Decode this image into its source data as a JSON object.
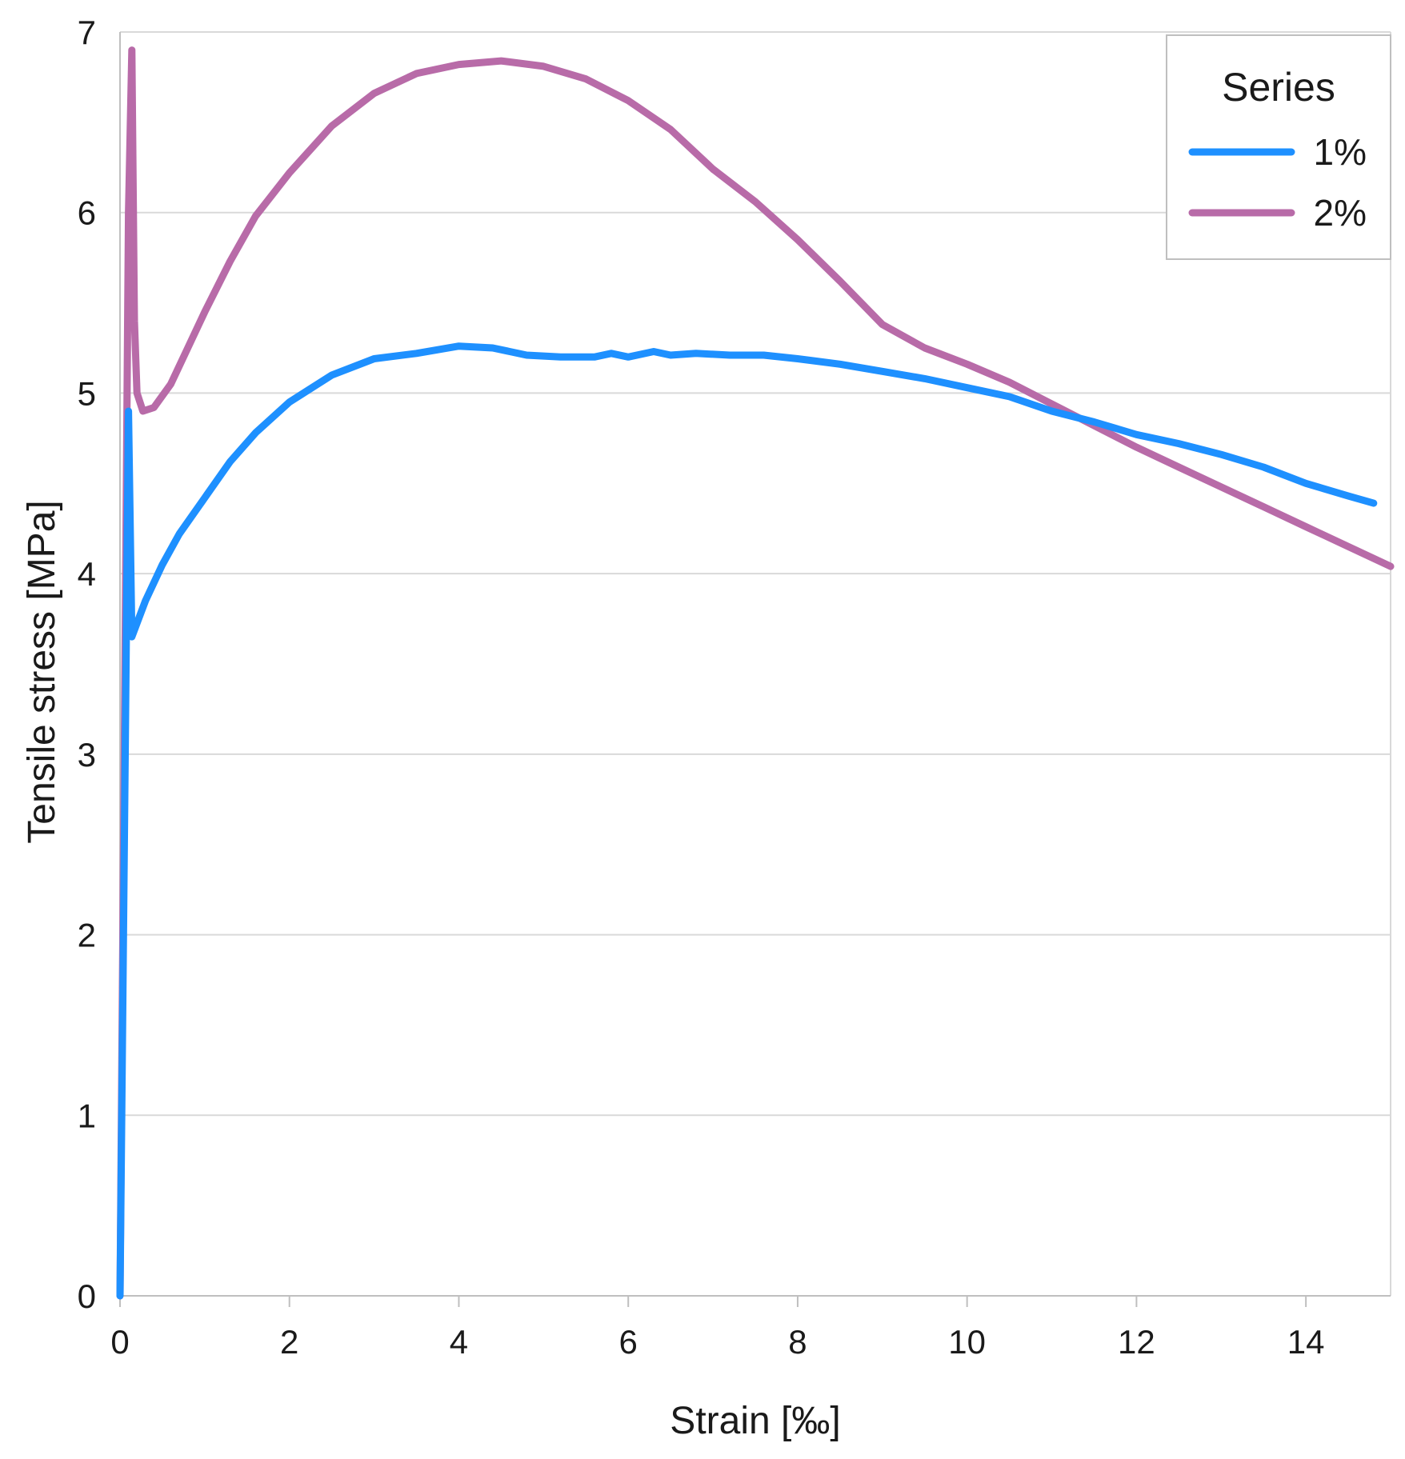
{
  "chart_data": {
    "type": "line",
    "xlabel": "Strain [‰]",
    "ylabel": "Tensile stress [MPa]",
    "xlim": [
      0,
      15
    ],
    "ylim": [
      0,
      7
    ],
    "x_ticks": [
      0,
      2,
      4,
      6,
      8,
      10,
      12,
      14
    ],
    "y_ticks": [
      0,
      1,
      2,
      3,
      4,
      5,
      6,
      7
    ],
    "grid": "horizontal",
    "legend": {
      "title": "Series",
      "placement": "top-right"
    },
    "series": [
      {
        "name": "1%",
        "color": "#1e90ff",
        "points": [
          [
            0,
            0
          ],
          [
            0.1,
            4.9
          ],
          [
            0.14,
            3.65
          ],
          [
            0.3,
            3.85
          ],
          [
            0.5,
            4.05
          ],
          [
            0.7,
            4.22
          ],
          [
            1.0,
            4.42
          ],
          [
            1.3,
            4.62
          ],
          [
            1.6,
            4.78
          ],
          [
            2.0,
            4.95
          ],
          [
            2.5,
            5.1
          ],
          [
            3.0,
            5.19
          ],
          [
            3.5,
            5.22
          ],
          [
            4.0,
            5.26
          ],
          [
            4.4,
            5.25
          ],
          [
            4.8,
            5.21
          ],
          [
            5.2,
            5.2
          ],
          [
            5.6,
            5.2
          ],
          [
            5.8,
            5.22
          ],
          [
            6.0,
            5.2
          ],
          [
            6.3,
            5.23
          ],
          [
            6.5,
            5.21
          ],
          [
            6.8,
            5.22
          ],
          [
            7.2,
            5.21
          ],
          [
            7.6,
            5.21
          ],
          [
            8.0,
            5.19
          ],
          [
            8.5,
            5.16
          ],
          [
            9.0,
            5.12
          ],
          [
            9.5,
            5.08
          ],
          [
            10.0,
            5.03
          ],
          [
            10.5,
            4.98
          ],
          [
            11.0,
            4.9
          ],
          [
            11.5,
            4.84
          ],
          [
            12.0,
            4.77
          ],
          [
            12.5,
            4.72
          ],
          [
            13.0,
            4.66
          ],
          [
            13.5,
            4.59
          ],
          [
            14.0,
            4.5
          ],
          [
            14.5,
            4.43
          ],
          [
            14.8,
            4.39
          ]
        ]
      },
      {
        "name": "2%",
        "color": "#b86ba8",
        "points": [
          [
            0,
            0
          ],
          [
            0.05,
            3.0
          ],
          [
            0.1,
            6.0
          ],
          [
            0.14,
            6.9
          ],
          [
            0.17,
            5.4
          ],
          [
            0.2,
            5.0
          ],
          [
            0.27,
            4.9
          ],
          [
            0.4,
            4.92
          ],
          [
            0.6,
            5.05
          ],
          [
            0.8,
            5.25
          ],
          [
            1.0,
            5.45
          ],
          [
            1.3,
            5.73
          ],
          [
            1.6,
            5.98
          ],
          [
            2.0,
            6.22
          ],
          [
            2.5,
            6.48
          ],
          [
            3.0,
            6.66
          ],
          [
            3.5,
            6.77
          ],
          [
            4.0,
            6.82
          ],
          [
            4.5,
            6.84
          ],
          [
            5.0,
            6.81
          ],
          [
            5.5,
            6.74
          ],
          [
            6.0,
            6.62
          ],
          [
            6.5,
            6.46
          ],
          [
            7.0,
            6.24
          ],
          [
            7.5,
            6.06
          ],
          [
            8.0,
            5.85
          ],
          [
            8.5,
            5.62
          ],
          [
            9.0,
            5.38
          ],
          [
            9.5,
            5.25
          ],
          [
            10.0,
            5.16
          ],
          [
            10.5,
            5.06
          ],
          [
            11.0,
            4.94
          ],
          [
            11.5,
            4.82
          ],
          [
            12.0,
            4.7
          ],
          [
            12.5,
            4.59
          ],
          [
            13.0,
            4.48
          ],
          [
            13.5,
            4.37
          ],
          [
            14.0,
            4.26
          ],
          [
            14.5,
            4.15
          ],
          [
            15.0,
            4.04
          ]
        ]
      }
    ]
  }
}
